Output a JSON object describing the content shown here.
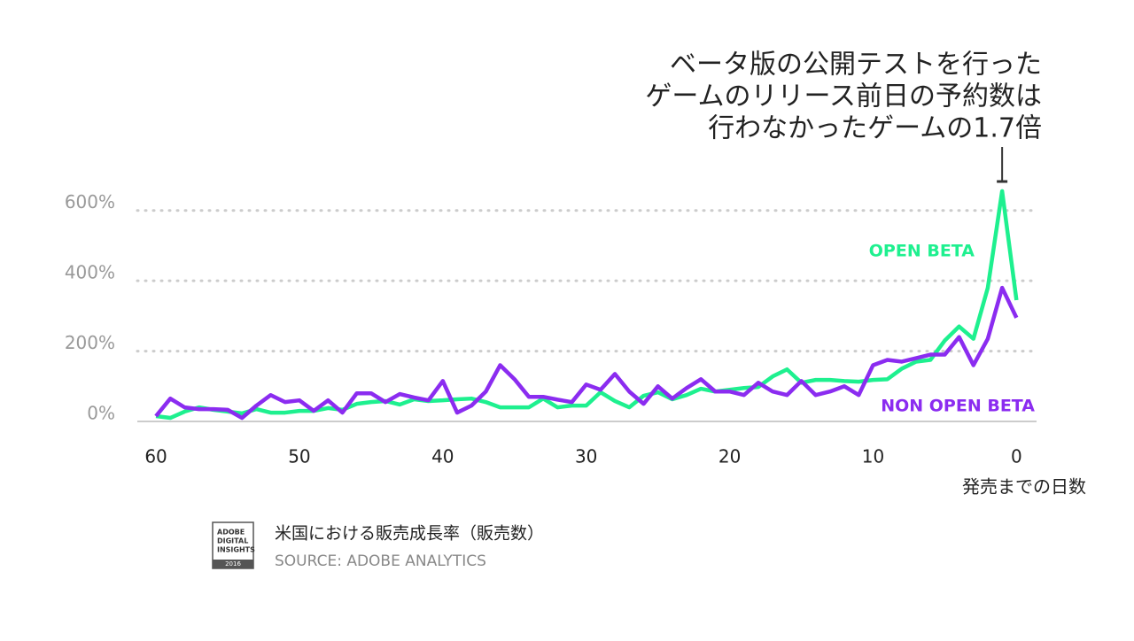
{
  "chart_data": {
    "type": "line",
    "annotation": [
      "ベータ版の公開テストを行った",
      "ゲームのリリース前日の予約数は",
      "行わなかったゲームの1.7倍"
    ],
    "x_label": "発売までの日数",
    "caption": "米国における販売成長率（販売数）",
    "source": "SOURCE: ADOBE ANALYTICS",
    "logo": [
      "ADOBE",
      "DIGITAL",
      "INSIGHTS",
      "2016"
    ],
    "x": [
      60,
      59,
      58,
      57,
      56,
      55,
      54,
      53,
      52,
      51,
      50,
      49,
      48,
      47,
      46,
      45,
      44,
      43,
      42,
      41,
      40,
      39,
      38,
      37,
      36,
      35,
      34,
      33,
      32,
      31,
      30,
      29,
      28,
      27,
      26,
      25,
      24,
      23,
      22,
      21,
      20,
      19,
      18,
      17,
      16,
      15,
      14,
      13,
      12,
      11,
      10,
      9,
      8,
      7,
      6,
      5,
      4,
      3,
      2,
      1,
      0
    ],
    "series": [
      {
        "name": "OPEN BETA",
        "color": "#1ef08f",
        "values": [
          15,
          10,
          28,
          40,
          33,
          28,
          23,
          35,
          25,
          25,
          30,
          30,
          38,
          33,
          50,
          55,
          58,
          48,
          63,
          58,
          60,
          63,
          65,
          55,
          40,
          40,
          40,
          65,
          40,
          45,
          45,
          83,
          58,
          40,
          73,
          83,
          63,
          75,
          93,
          85,
          90,
          95,
          98,
          128,
          148,
          110,
          118,
          118,
          115,
          113,
          118,
          120,
          150,
          170,
          175,
          230,
          270,
          235,
          380,
          655,
          345
        ]
      },
      {
        "name": "NON OPEN BETA",
        "color": "#8b2cf0",
        "values": [
          15,
          65,
          40,
          35,
          35,
          33,
          10,
          45,
          75,
          55,
          60,
          30,
          60,
          25,
          80,
          80,
          55,
          78,
          68,
          60,
          115,
          25,
          45,
          85,
          160,
          120,
          70,
          70,
          62,
          55,
          105,
          90,
          135,
          85,
          50,
          100,
          65,
          95,
          120,
          85,
          85,
          75,
          110,
          85,
          75,
          115,
          75,
          85,
          100,
          75,
          160,
          175,
          170,
          180,
          190,
          190,
          240,
          160,
          235,
          380,
          295
        ]
      }
    ],
    "xlim": [
      61.3,
      -1.4
    ],
    "ylim": [
      0,
      700
    ],
    "xticks": [
      60,
      50,
      40,
      30,
      20,
      10,
      0
    ],
    "yticks": [
      {
        "value": 0,
        "label": "0%"
      },
      {
        "value": 200,
        "label": "200%"
      },
      {
        "value": 400,
        "label": "400%"
      },
      {
        "value": 600,
        "label": "600%"
      }
    ],
    "grid": true
  }
}
